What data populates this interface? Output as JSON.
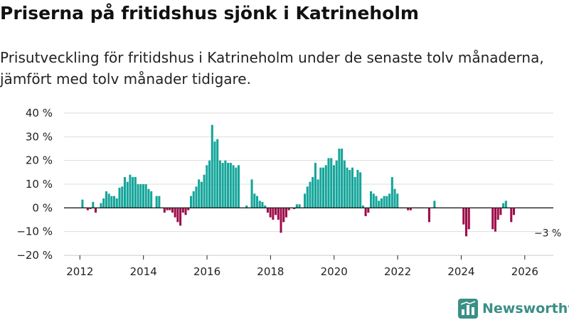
{
  "title": "Priserna på fritidshus sjönk i Katrineholm",
  "subtitle": "Prisutveckling för fritidshus i Katrineholm under de senaste tolv månaderna, jämfört med tolv månader tidigare.",
  "brand": {
    "name": "Newsworthy",
    "logo_icon": "bar-chart-logo-icon"
  },
  "colors": {
    "positive": "#14a59a",
    "negative": "#9e0c4a",
    "grid": "#dddddd",
    "axis": "#222222"
  },
  "chart_data": {
    "type": "bar",
    "ylim": [
      -20,
      40
    ],
    "xlim": [
      2011.5,
      2026.9
    ],
    "y_ticks": [
      {
        "value": 40,
        "label": "40 %"
      },
      {
        "value": 30,
        "label": "30 %"
      },
      {
        "value": 20,
        "label": "20 %"
      },
      {
        "value": 10,
        "label": "10 %"
      },
      {
        "value": 0,
        "label": "0 %"
      },
      {
        "value": -10,
        "label": "−10 %"
      },
      {
        "value": -20,
        "label": "−20 %"
      }
    ],
    "x_ticks": [
      {
        "value": 2012,
        "label": "2012"
      },
      {
        "value": 2014,
        "label": "2014"
      },
      {
        "value": 2016,
        "label": "2016"
      },
      {
        "value": 2018,
        "label": "2018"
      },
      {
        "value": 2020,
        "label": "2020"
      },
      {
        "value": 2022,
        "label": "2022"
      },
      {
        "value": 2024,
        "label": "2024"
      },
      {
        "value": 2026,
        "label": "2026"
      }
    ],
    "series": [
      {
        "name": "Prisutveckling",
        "start": 2012.08,
        "step": 0.0833,
        "values": [
          3.5,
          null,
          -1,
          -0.5,
          2.5,
          -2,
          null,
          2,
          4,
          7,
          6,
          5,
          5,
          4,
          8.5,
          9,
          13,
          11,
          14,
          13,
          13,
          10,
          10,
          10,
          10,
          8,
          7,
          null,
          5,
          5,
          null,
          -2,
          -1,
          -1,
          -2,
          -4,
          -6,
          -7.5,
          -2,
          -3,
          -1,
          5,
          7,
          9,
          12,
          11,
          14,
          18,
          20,
          35,
          28,
          29,
          20,
          19,
          20,
          19,
          19,
          18,
          17,
          18,
          null,
          null,
          1,
          null,
          12,
          6,
          5,
          3,
          2.5,
          1,
          -2,
          -4,
          -5,
          -3,
          -5,
          -10.5,
          -6,
          -4,
          -1,
          null,
          -0.5,
          1.5,
          1.5,
          null,
          6,
          9,
          11,
          13,
          19,
          12,
          17,
          17,
          18,
          21,
          21,
          18,
          20,
          25,
          25,
          20,
          17,
          16,
          17,
          13,
          16,
          15,
          1,
          -3.5,
          -2,
          7,
          6,
          5,
          3,
          4,
          5,
          5,
          6,
          13,
          8,
          6,
          null,
          null,
          null,
          -1,
          -1,
          null,
          null,
          null,
          null,
          null,
          null,
          -6,
          null,
          3,
          null,
          null,
          null,
          null,
          null,
          null,
          null,
          null,
          null,
          null,
          -7,
          -12,
          -9,
          null,
          null,
          null,
          null,
          null,
          null,
          null,
          null,
          -9,
          -10,
          -5,
          -3,
          2,
          3,
          null,
          -6,
          -3
        ]
      }
    ],
    "annotations": [
      {
        "x": 2026.25,
        "y": -3,
        "label": "−3 %"
      }
    ]
  }
}
